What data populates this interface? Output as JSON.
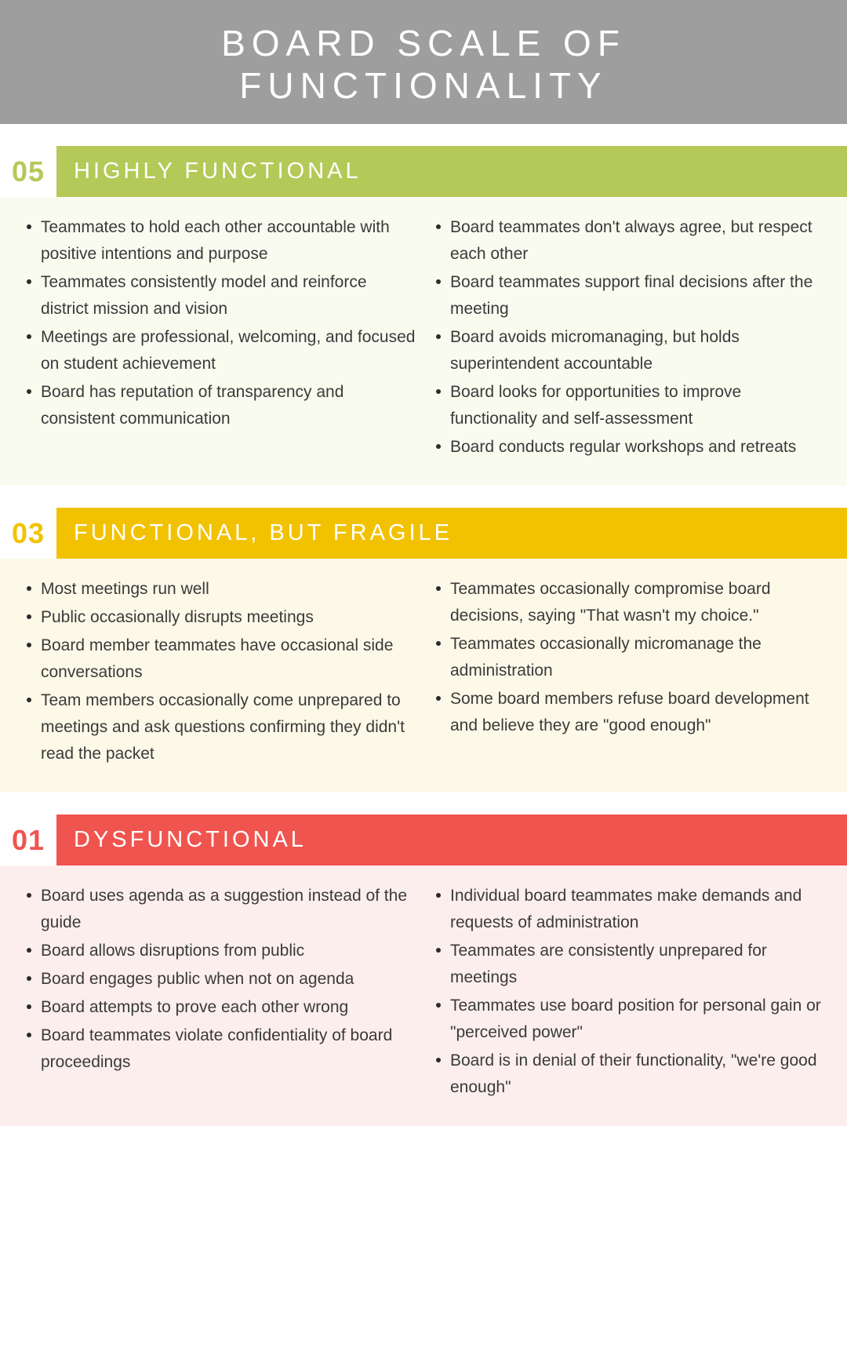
{
  "title": "BOARD SCALE OF FUNCTIONALITY",
  "title_banner": {
    "background_color": "#9e9e9e",
    "text_color": "#ffffff",
    "font_size": 46,
    "letter_spacing": 8
  },
  "body_font_size": 21,
  "body_line_height": 1.62,
  "bullet_color": "#2a2a2a",
  "sections": [
    {
      "number": "05",
      "label": "HIGHLY FUNCTIONAL",
      "number_color": "#b4c958",
      "label_bg": "#b4c958",
      "label_text_color": "#ffffff",
      "body_bg": "#f9fbef",
      "left_items": [
        "Teammates to hold each other accountable with positive intentions and purpose",
        "Teammates consistently model and reinforce district mission and vision",
        "Meetings are professional, welcoming, and focused on student achievement",
        "Board has reputation of transparency and consistent communication"
      ],
      "right_items": [
        "Board teammates don't always agree, but respect each other",
        "Board teammates support final decisions after the meeting",
        "Board avoids micromanaging, but holds superintendent accountable",
        "Board looks for opportunities to improve functionality and self-assessment",
        "Board conducts regular workshops and retreats"
      ]
    },
    {
      "number": "03",
      "label": "FUNCTIONAL, BUT FRAGILE",
      "number_color": "#f2c200",
      "label_bg": "#f2c200",
      "label_text_color": "#ffffff",
      "body_bg": "#fdf9e8",
      "left_items": [
        "Most meetings run well",
        "Public occasionally disrupts meetings",
        "Board member teammates have occasional side conversations",
        "Team members occasionally come unprepared to meetings and ask questions confirming they didn't read the packet"
      ],
      "right_items": [
        "Teammates occasionally compromise board decisions, saying \"That wasn't my choice.\"",
        "Teammates occasionally micromanage the administration",
        "Some board members refuse board development and believe they are \"good enough\""
      ]
    },
    {
      "number": "01",
      "label": "DYSFUNCTIONAL",
      "number_color": "#f0544f",
      "label_bg": "#f0544f",
      "label_text_color": "#ffffff",
      "body_bg": "#fdeeee",
      "left_items": [
        "Board uses agenda as a suggestion instead of the guide",
        "Board allows disruptions from public",
        "Board engages public when not on agenda",
        "Board attempts to prove each other wrong",
        "Board teammates violate confidentiality of board proceedings"
      ],
      "right_items": [
        "Individual board teammates make demands and requests of administration",
        "Teammates are consistently unprepared for meetings",
        "Teammates use board position for personal gain or \"perceived power\"",
        "Board is in denial of their functionality, \"we're good enough\""
      ]
    }
  ]
}
